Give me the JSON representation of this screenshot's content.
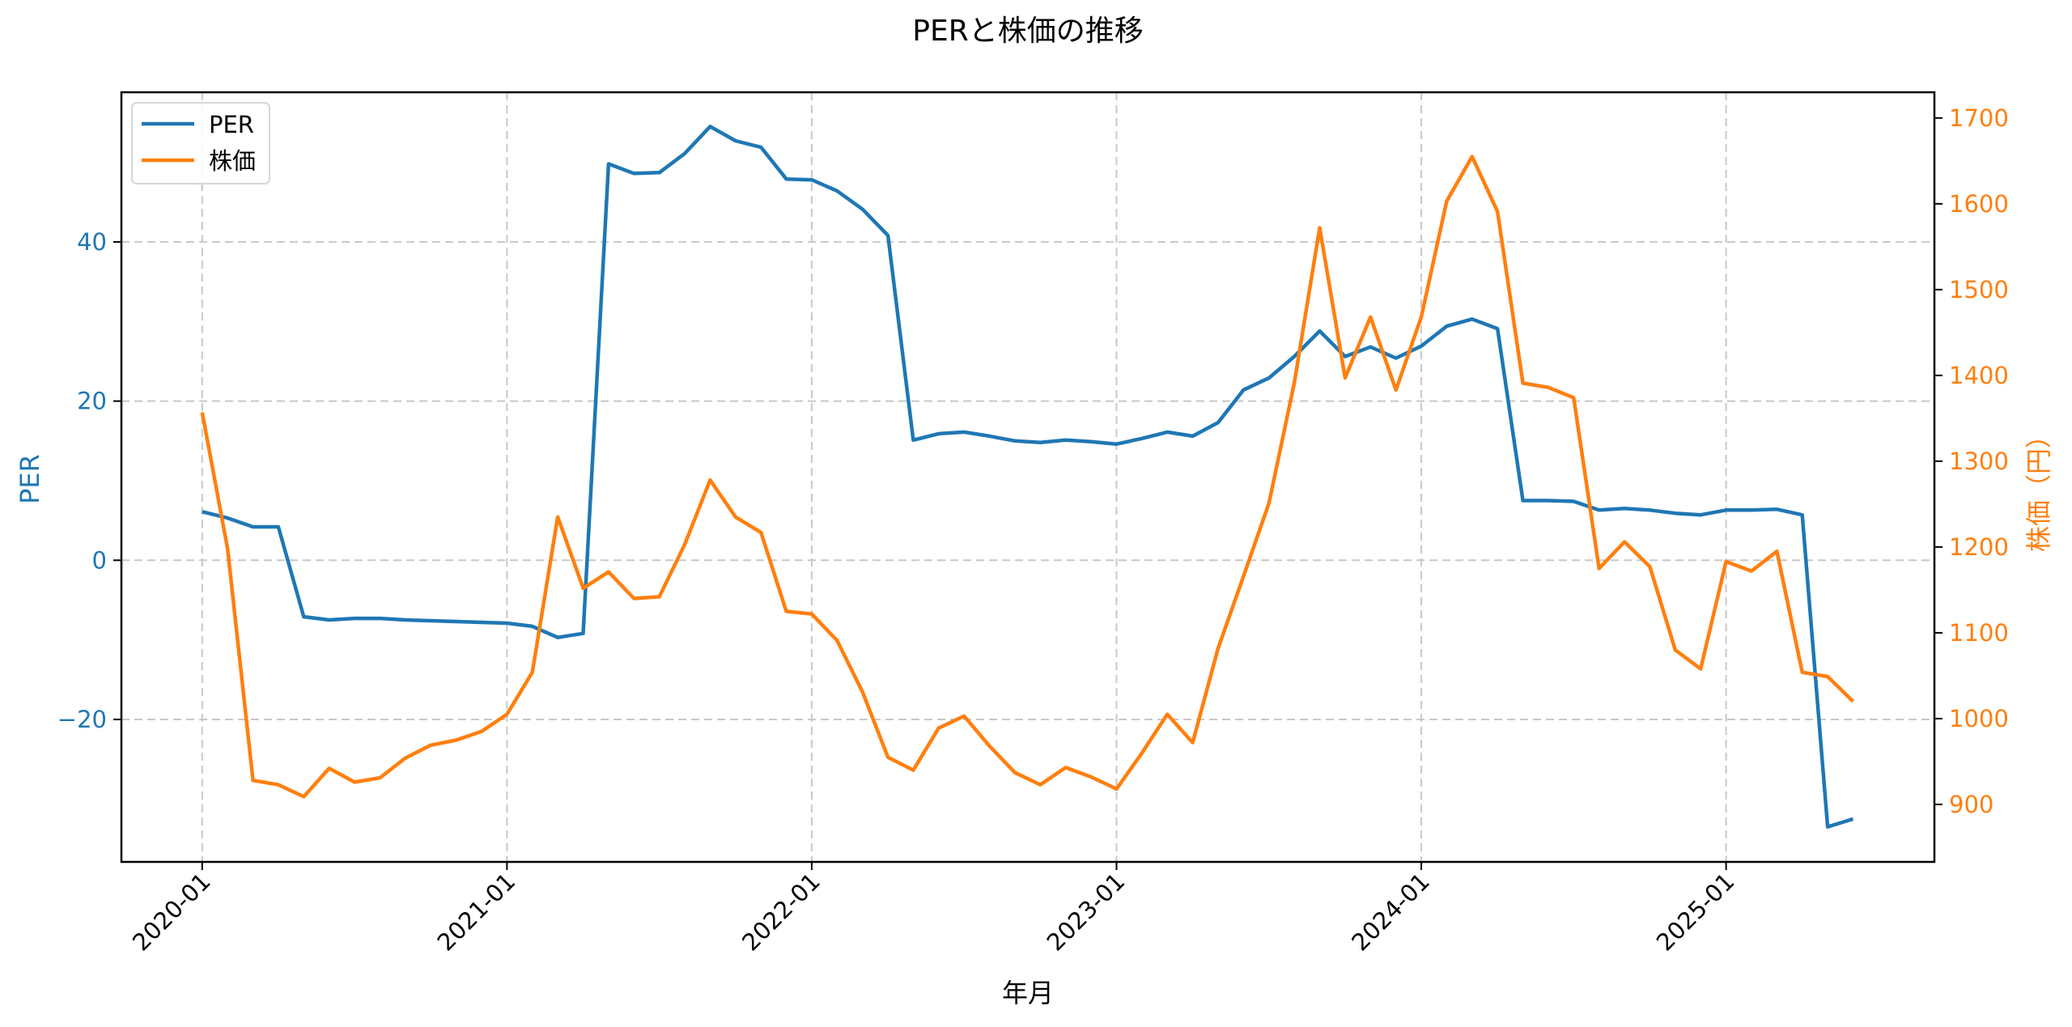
{
  "chart_data": {
    "type": "line",
    "title": "PERと株価の推移",
    "xlabel": "年月",
    "ylabel_left": "PER",
    "ylabel_right": "株価（円）",
    "grid": true,
    "legend_position": "upper left",
    "x_tick_labels": [
      "2020-01",
      "2021-01",
      "2022-01",
      "2023-01",
      "2024-01",
      "2025-01"
    ],
    "x_tick_indices": [
      0,
      12,
      24,
      36,
      48,
      60
    ],
    "y_left_ticks": [
      -20,
      0,
      20,
      40
    ],
    "y_left_lim": [
      -37.9,
      58.8
    ],
    "y_right_ticks": [
      900,
      1000,
      1100,
      1200,
      1300,
      1400,
      1500,
      1600,
      1700
    ],
    "y_right_lim": [
      833,
      1730
    ],
    "x": [
      "2020-01",
      "2020-02",
      "2020-03",
      "2020-04",
      "2020-05",
      "2020-06",
      "2020-07",
      "2020-08",
      "2020-09",
      "2020-10",
      "2020-11",
      "2020-12",
      "2021-01",
      "2021-02",
      "2021-03",
      "2021-04",
      "2021-05",
      "2021-06",
      "2021-07",
      "2021-08",
      "2021-09",
      "2021-10",
      "2021-11",
      "2021-12",
      "2022-01",
      "2022-02",
      "2022-03",
      "2022-04",
      "2022-05",
      "2022-06",
      "2022-07",
      "2022-08",
      "2022-09",
      "2022-10",
      "2022-11",
      "2022-12",
      "2023-01",
      "2023-02",
      "2023-03",
      "2023-04",
      "2023-05",
      "2023-06",
      "2023-07",
      "2023-08",
      "2023-09",
      "2023-10",
      "2023-11",
      "2023-12",
      "2024-01",
      "2024-02",
      "2024-03",
      "2024-04",
      "2024-05",
      "2024-06",
      "2024-07",
      "2024-08",
      "2024-09",
      "2024-10",
      "2024-11",
      "2024-12",
      "2025-01",
      "2025-02",
      "2025-03",
      "2025-04",
      "2025-05",
      "2025-06"
    ],
    "series": [
      {
        "name": "PER",
        "axis": "left",
        "color": "#1f77b4",
        "values": [
          6.1,
          5.3,
          4.2,
          4.2,
          -7.1,
          -7.5,
          -7.3,
          -7.3,
          -7.5,
          -7.6,
          -7.7,
          -7.8,
          -7.9,
          -8.3,
          -9.7,
          -9.2,
          49.8,
          48.6,
          48.7,
          51.1,
          54.5,
          52.7,
          51.9,
          47.9,
          47.8,
          46.4,
          44.1,
          40.8,
          15.1,
          15.9,
          16.1,
          15.6,
          15.0,
          14.8,
          15.1,
          14.9,
          14.6,
          15.3,
          16.1,
          15.6,
          17.3,
          21.4,
          22.9,
          25.6,
          28.8,
          25.6,
          26.8,
          25.4,
          26.9,
          29.4,
          30.3,
          29.1,
          7.5,
          7.5,
          7.4,
          6.3,
          6.5,
          6.3,
          5.9,
          5.7,
          6.3,
          6.3,
          6.4,
          5.7,
          -33.5,
          -32.5
        ]
      },
      {
        "name": "株価",
        "axis": "right",
        "color": "#ff7f0e",
        "values": [
          1357,
          1198,
          928,
          923,
          909,
          942,
          926,
          931,
          954,
          969,
          975,
          985,
          1005,
          1054,
          1235,
          1152,
          1171,
          1140,
          1142,
          1203,
          1278,
          1235,
          1217,
          1125,
          1122,
          1091,
          1031,
          955,
          940,
          989,
          1003,
          968,
          937,
          923,
          943,
          932,
          918,
          960,
          1005,
          972,
          1082,
          1166,
          1251,
          1391,
          1572,
          1397,
          1468,
          1383,
          1468,
          1603,
          1655,
          1591,
          1391,
          1386,
          1374,
          1175,
          1206,
          1177,
          1080,
          1058,
          1183,
          1172,
          1195,
          1054,
          1049,
          1020
        ]
      }
    ]
  },
  "legend": {
    "items": [
      {
        "label": "PER",
        "color": "#1f77b4"
      },
      {
        "label": "株価",
        "color": "#ff7f0e"
      }
    ]
  }
}
